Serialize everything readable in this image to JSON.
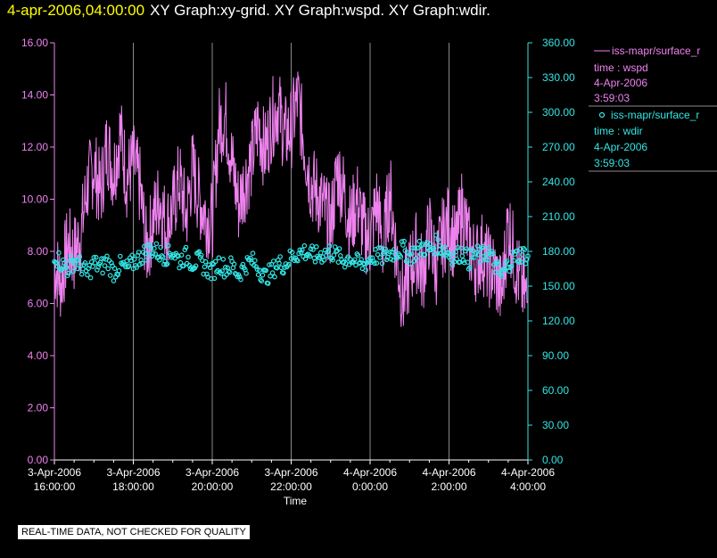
{
  "header": {
    "timestamp": "4-apr-2006,04:00:00",
    "title": "XY Graph:xy-grid.  XY Graph:wspd.  XY Graph:wdir."
  },
  "colors": {
    "background": "#000000",
    "wspd": "#ee82ee",
    "wdir": "#33e6e6",
    "grid": "#8a8a8a",
    "timestamp": "#ffff00"
  },
  "legend": {
    "wspd": {
      "label": "iss-mapr/surface_r",
      "var": "time : wspd",
      "date": "4-Apr-2006",
      "time": "3:59:03"
    },
    "wdir": {
      "label": "iss-mapr/surface_r",
      "var": "time : wdir",
      "date": "4-Apr-2006",
      "time": "3:59:03"
    }
  },
  "footer": {
    "note": "REAL-TIME DATA, NOT CHECKED FOR QUALITY"
  },
  "chart_data": {
    "type": "line",
    "xlabel": "Time",
    "xlim": [
      "3-Apr-2006 16:00:00",
      "4-Apr-2006 04:00:00"
    ],
    "x_ticks": [
      {
        "date": "3-Apr-2006",
        "time": "16:00:00"
      },
      {
        "date": "3-Apr-2006",
        "time": "18:00:00"
      },
      {
        "date": "3-Apr-2006",
        "time": "20:00:00"
      },
      {
        "date": "3-Apr-2006",
        "time": "22:00:00"
      },
      {
        "date": "4-Apr-2006",
        "time": "0:00:00"
      },
      {
        "date": "4-Apr-2006",
        "time": "2:00:00"
      },
      {
        "date": "4-Apr-2006",
        "time": "4:00:00"
      }
    ],
    "y_left": {
      "lim": [
        0,
        16
      ],
      "ticks": [
        "0.00",
        "2.00",
        "4.00",
        "6.00",
        "8.00",
        "10.00",
        "12.00",
        "14.00",
        "16.00"
      ]
    },
    "y_right": {
      "lim": [
        0,
        360
      ],
      "ticks": [
        "0.00",
        "30.00",
        "60.00",
        "90.00",
        "120.00",
        "150.00",
        "180.00",
        "210.00",
        "240.00",
        "270.00",
        "300.00",
        "330.00",
        "360.00"
      ]
    },
    "grid": "vertical lines at x ticks",
    "legend_position": "right",
    "series": [
      {
        "name": "iss-mapr/surface_r time : wspd",
        "style": "line",
        "axis": "left",
        "x": [
          "3-Apr-2006 16:00",
          "3-Apr-2006 16:10",
          "3-Apr-2006 16:20",
          "3-Apr-2006 16:30",
          "3-Apr-2006 16:40",
          "3-Apr-2006 16:50",
          "3-Apr-2006 17:00",
          "3-Apr-2006 17:10",
          "3-Apr-2006 17:20",
          "3-Apr-2006 17:30",
          "3-Apr-2006 17:40",
          "3-Apr-2006 17:50",
          "3-Apr-2006 18:00",
          "3-Apr-2006 18:10",
          "3-Apr-2006 18:20",
          "3-Apr-2006 18:30",
          "3-Apr-2006 18:40",
          "3-Apr-2006 18:50",
          "3-Apr-2006 19:00",
          "3-Apr-2006 19:10",
          "3-Apr-2006 19:20",
          "3-Apr-2006 19:30",
          "3-Apr-2006 19:40",
          "3-Apr-2006 19:50",
          "3-Apr-2006 20:00",
          "3-Apr-2006 20:10",
          "3-Apr-2006 20:20",
          "3-Apr-2006 20:30",
          "3-Apr-2006 20:40",
          "3-Apr-2006 20:50",
          "3-Apr-2006 21:00",
          "3-Apr-2006 21:10",
          "3-Apr-2006 21:20",
          "3-Apr-2006 21:30",
          "3-Apr-2006 21:40",
          "3-Apr-2006 21:50",
          "3-Apr-2006 22:00",
          "3-Apr-2006 22:10",
          "3-Apr-2006 22:20",
          "3-Apr-2006 22:30",
          "3-Apr-2006 22:40",
          "3-Apr-2006 22:50",
          "3-Apr-2006 23:00",
          "3-Apr-2006 23:10",
          "3-Apr-2006 23:20",
          "3-Apr-2006 23:30",
          "3-Apr-2006 23:40",
          "3-Apr-2006 23:50",
          "4-Apr-2006 00:00",
          "4-Apr-2006 00:10",
          "4-Apr-2006 00:20",
          "4-Apr-2006 00:30",
          "4-Apr-2006 00:40",
          "4-Apr-2006 00:50",
          "4-Apr-2006 01:00",
          "4-Apr-2006 01:10",
          "4-Apr-2006 01:20",
          "4-Apr-2006 01:30",
          "4-Apr-2006 01:40",
          "4-Apr-2006 01:50",
          "4-Apr-2006 02:00",
          "4-Apr-2006 02:10",
          "4-Apr-2006 02:20",
          "4-Apr-2006 02:30",
          "4-Apr-2006 02:40",
          "4-Apr-2006 02:50",
          "4-Apr-2006 03:00",
          "4-Apr-2006 03:10",
          "4-Apr-2006 03:20",
          "4-Apr-2006 03:30",
          "4-Apr-2006 03:40",
          "4-Apr-2006 03:50",
          "4-Apr-2006 04:00"
        ],
        "y": [
          7.5,
          6.8,
          8.2,
          7.9,
          8.6,
          10.5,
          11.3,
          10.2,
          12.1,
          11.0,
          12.6,
          10.8,
          11.4,
          10.5,
          8.0,
          9.2,
          10.1,
          8.9,
          9.6,
          10.8,
          9.3,
          11.2,
          10.0,
          9.4,
          9.1,
          12.8,
          13.2,
          11.4,
          9.8,
          10.7,
          11.5,
          12.9,
          11.8,
          13.0,
          13.6,
          12.4,
          12.7,
          13.9,
          12.1,
          10.6,
          10.2,
          9.6,
          8.9,
          11.1,
          10.3,
          9.0,
          10.0,
          8.8,
          8.4,
          9.9,
          8.1,
          10.4,
          7.9,
          6.1,
          7.2,
          8.0,
          7.1,
          8.8,
          7.4,
          8.5,
          9.1,
          8.1,
          9.7,
          8.3,
          7.6,
          8.0,
          7.4,
          7.2,
          6.3,
          9.2,
          7.6,
          6.7,
          6.0
        ],
        "y_range_note": "approx. values read from the trace"
      },
      {
        "name": "iss-mapr/surface_r time : wdir",
        "style": "scatter",
        "axis": "right",
        "x": [
          "3-Apr-2006 16:00",
          "3-Apr-2006 16:10",
          "3-Apr-2006 16:20",
          "3-Apr-2006 16:30",
          "3-Apr-2006 16:40",
          "3-Apr-2006 16:50",
          "3-Apr-2006 17:00",
          "3-Apr-2006 17:10",
          "3-Apr-2006 17:20",
          "3-Apr-2006 17:30",
          "3-Apr-2006 17:40",
          "3-Apr-2006 17:50",
          "3-Apr-2006 18:00",
          "3-Apr-2006 18:10",
          "3-Apr-2006 18:20",
          "3-Apr-2006 18:30",
          "3-Apr-2006 18:40",
          "3-Apr-2006 18:50",
          "3-Apr-2006 19:00",
          "3-Apr-2006 19:10",
          "3-Apr-2006 19:20",
          "3-Apr-2006 19:30",
          "3-Apr-2006 19:40",
          "3-Apr-2006 19:50",
          "3-Apr-2006 20:00",
          "3-Apr-2006 20:10",
          "3-Apr-2006 20:20",
          "3-Apr-2006 20:30",
          "3-Apr-2006 20:40",
          "3-Apr-2006 20:50",
          "3-Apr-2006 21:00",
          "3-Apr-2006 21:10",
          "3-Apr-2006 21:20",
          "3-Apr-2006 21:30",
          "3-Apr-2006 21:40",
          "3-Apr-2006 21:50",
          "3-Apr-2006 22:00",
          "3-Apr-2006 22:10",
          "3-Apr-2006 22:20",
          "3-Apr-2006 22:30",
          "3-Apr-2006 22:40",
          "3-Apr-2006 22:50",
          "3-Apr-2006 23:00",
          "3-Apr-2006 23:10",
          "3-Apr-2006 23:20",
          "3-Apr-2006 23:30",
          "3-Apr-2006 23:40",
          "3-Apr-2006 23:50",
          "4-Apr-2006 00:00",
          "4-Apr-2006 00:10",
          "4-Apr-2006 00:20",
          "4-Apr-2006 00:30",
          "4-Apr-2006 00:40",
          "4-Apr-2006 00:50",
          "4-Apr-2006 01:00",
          "4-Apr-2006 01:10",
          "4-Apr-2006 01:20",
          "4-Apr-2006 01:30",
          "4-Apr-2006 01:40",
          "4-Apr-2006 01:50",
          "4-Apr-2006 02:00",
          "4-Apr-2006 02:10",
          "4-Apr-2006 02:20",
          "4-Apr-2006 02:30",
          "4-Apr-2006 02:40",
          "4-Apr-2006 02:50",
          "4-Apr-2006 03:00",
          "4-Apr-2006 03:10",
          "4-Apr-2006 03:20",
          "4-Apr-2006 03:30",
          "4-Apr-2006 03:40",
          "4-Apr-2006 03:50",
          "4-Apr-2006 04:00"
        ],
        "y": [
          178,
          170,
          165,
          172,
          168,
          160,
          170,
          166,
          172,
          162,
          168,
          165,
          170,
          175,
          180,
          182,
          178,
          176,
          180,
          172,
          176,
          170,
          172,
          166,
          162,
          170,
          165,
          168,
          160,
          168,
          172,
          166,
          158,
          162,
          170,
          168,
          175,
          178,
          180,
          177,
          176,
          178,
          180,
          176,
          172,
          175,
          170,
          168,
          174,
          176,
          175,
          178,
          180,
          182,
          176,
          180,
          184,
          181,
          186,
          183,
          178,
          175,
          180,
          172,
          178,
          176,
          180,
          168,
          158,
          170,
          175,
          178,
          176
        ],
        "y_range_note": "approx. values read from the markers"
      }
    ]
  }
}
